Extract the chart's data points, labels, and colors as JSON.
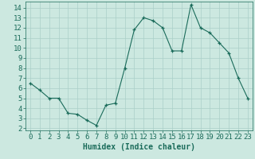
{
  "x": [
    0,
    1,
    2,
    3,
    4,
    5,
    6,
    7,
    8,
    9,
    10,
    11,
    12,
    13,
    14,
    15,
    16,
    17,
    18,
    19,
    20,
    21,
    22,
    23
  ],
  "y": [
    6.5,
    5.8,
    5.0,
    5.0,
    3.5,
    3.4,
    2.8,
    2.3,
    4.3,
    4.5,
    8.0,
    11.8,
    13.0,
    12.7,
    12.0,
    9.7,
    9.7,
    14.3,
    12.0,
    11.5,
    10.5,
    9.5,
    7.0,
    5.0
  ],
  "line_color": "#1a6b5a",
  "marker": "+",
  "bg_color": "#cce8e0",
  "grid_color": "#aacfc8",
  "axis_color": "#1a6b5a",
  "tick_color": "#1a6b5a",
  "xlabel": "Humidex (Indice chaleur)",
  "xlim": [
    -0.5,
    23.5
  ],
  "ylim": [
    1.8,
    14.6
  ],
  "yticks": [
    2,
    3,
    4,
    5,
    6,
    7,
    8,
    9,
    10,
    11,
    12,
    13,
    14
  ],
  "xticks": [
    0,
    1,
    2,
    3,
    4,
    5,
    6,
    7,
    8,
    9,
    10,
    11,
    12,
    13,
    14,
    15,
    16,
    17,
    18,
    19,
    20,
    21,
    22,
    23
  ],
  "label_fontsize": 7,
  "tick_fontsize": 6.5
}
